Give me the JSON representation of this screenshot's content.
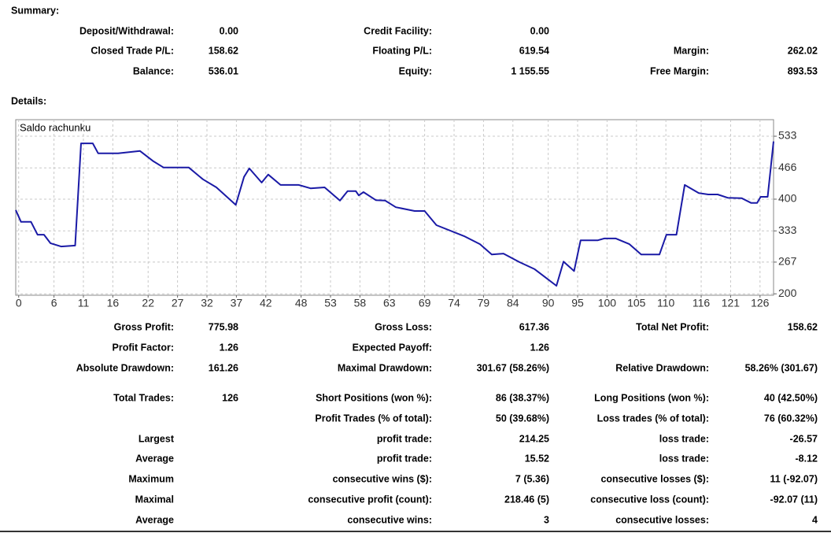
{
  "summary": {
    "title": "Summary:",
    "rows": [
      [
        "Deposit/Withdrawal:",
        "0.00",
        "Credit Facility:",
        "0.00",
        null,
        null
      ],
      [
        "Closed Trade P/L:",
        "158.62",
        "Floating P/L:",
        "619.54",
        "Margin:",
        "262.02"
      ],
      [
        "Balance:",
        "536.01",
        "Equity:",
        "1 155.55",
        "Free Margin:",
        "893.53"
      ]
    ]
  },
  "details": {
    "title": "Details:",
    "rows": [
      [
        "Gross Profit:",
        "775.98",
        "Gross Loss:",
        "617.36",
        "Total Net Profit:",
        "158.62"
      ],
      [
        "Profit Factor:",
        "1.26",
        "Expected Payoff:",
        "1.26",
        null,
        null
      ],
      [
        "Absolute Drawdown:",
        "161.26",
        "Maximal Drawdown:",
        "301.67 (58.26%)",
        "Relative Drawdown:",
        "58.26% (301.67)"
      ],
      [
        "Total Trades:",
        "126",
        "Short Positions (won %):",
        "86 (38.37%)",
        "Long Positions (won %):",
        "40 (42.50%)"
      ],
      [
        null,
        null,
        "Profit Trades (% of total):",
        "50 (39.68%)",
        "Loss trades (% of total):",
        "76 (60.32%)"
      ],
      [
        "Largest",
        null,
        "profit trade:",
        "214.25",
        "loss trade:",
        "-26.57"
      ],
      [
        "Average",
        null,
        "profit trade:",
        "15.52",
        "loss trade:",
        "-8.12"
      ],
      [
        "Maximum",
        null,
        "consecutive wins ($):",
        "7 (5.36)",
        "consecutive losses ($):",
        "11 (-92.07)"
      ],
      [
        "Maximal",
        null,
        "consecutive profit (count):",
        "218.46 (5)",
        "consecutive loss (count):",
        "-92.07 (11)"
      ],
      [
        "Average",
        null,
        "consecutive wins:",
        "3",
        "consecutive losses:",
        "4"
      ]
    ]
  },
  "chart_data": {
    "type": "line",
    "title": "Saldo rachunku",
    "series": [
      {
        "name": "Saldo rachunku",
        "color": "#1a1aa6",
        "x": [
          -0.5,
          0.4,
          2.1,
          3.2,
          4.3,
          5.4,
          7.2,
          9.6,
          10.6,
          12.6,
          13.5,
          16.9,
          20.6,
          22.9,
          24.6,
          28.9,
          31.3,
          33.6,
          36.9,
          38.3,
          39.2,
          41.3,
          42.4,
          44.5,
          47.6,
          49.6,
          52,
          54.6,
          55.9,
          57.3,
          57.8,
          58.6,
          60.7,
          62.3,
          64.1,
          67.3,
          69,
          71,
          75.7,
          78.4,
          80.4,
          82.4,
          85.1,
          87.7,
          89.5,
          91.4,
          92.6,
          94.4,
          95.5,
          98.4,
          99.5,
          101.5,
          103.8,
          105.8,
          108.9,
          110.1,
          111.8,
          113.2,
          115.6,
          117.2,
          118.8,
          120.5,
          122.9,
          124.5,
          125.5,
          126.1,
          127.3,
          128.3
        ],
        "values": [
          377,
          352,
          352,
          325,
          325,
          307,
          300,
          302,
          518,
          518,
          497,
          497,
          502,
          480,
          467,
          467,
          442,
          425,
          388,
          447,
          465,
          435,
          452,
          430,
          430,
          423,
          425,
          397,
          417,
          417,
          408,
          415,
          398,
          397,
          383,
          375,
          375,
          345,
          322,
          305,
          283,
          285,
          267,
          252,
          235,
          217,
          268,
          248,
          313,
          313,
          317,
          317,
          305,
          283,
          283,
          325,
          325,
          430,
          413,
          410,
          410,
          403,
          402,
          392,
          392,
          405,
          405,
          522
        ]
      }
    ],
    "xlim": [
      -0.5,
      128.3
    ],
    "xticks": [
      0,
      6,
      11,
      16,
      22,
      27,
      32,
      37,
      42,
      48,
      53,
      58,
      63,
      69,
      74,
      79,
      84,
      90,
      95,
      100,
      105,
      110,
      116,
      121,
      126
    ],
    "ylim": [
      197,
      568
    ],
    "yticks": [
      200,
      267,
      333,
      400,
      466,
      533
    ],
    "grid": true
  }
}
